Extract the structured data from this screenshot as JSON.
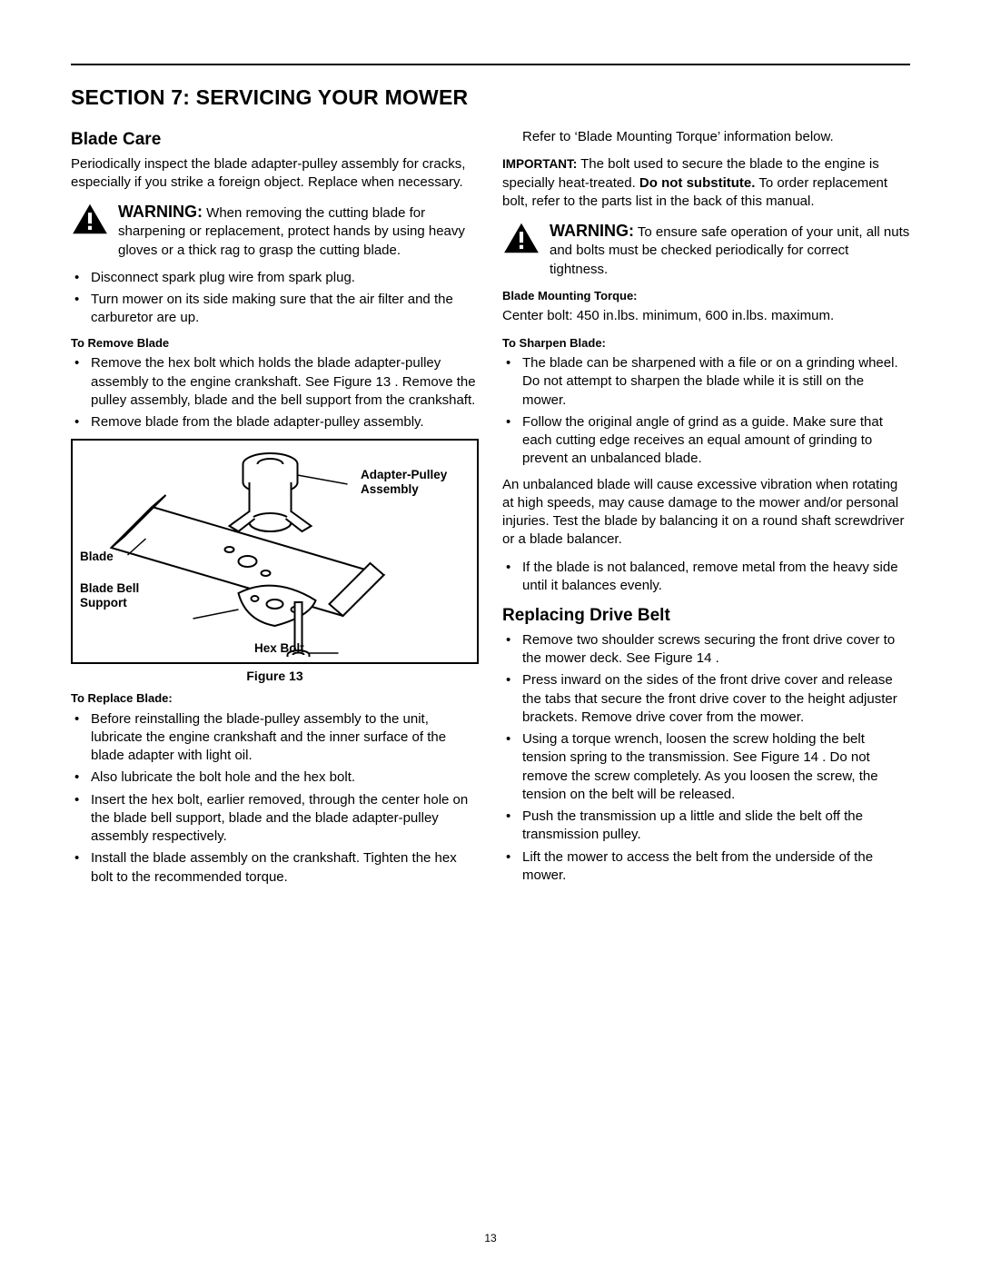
{
  "page_number": "13",
  "hr_color": "#000000",
  "section_title": "SECTION 7: SERVICING YOUR MOWER",
  "left": {
    "blade_care_h": "Blade Care",
    "blade_care_p": "Periodically inspect the blade adapter-pulley assembly for cracks, especially if you strike a foreign object. Replace when necessary.",
    "warn1_lead": "WARNING:",
    "warn1_body": " When removing the cutting blade for sharpening or replacement, protect hands by using heavy gloves or a thick rag to grasp the cutting blade.",
    "pre_remove_bullets": [
      "Disconnect spark plug wire from spark plug.",
      "Turn mower on its side making sure that the air filter and the carburetor are up."
    ],
    "to_remove_h": "To Remove Blade",
    "to_remove_bullets": [
      "Remove the hex bolt which holds the blade adapter-pulley assembly to the engine crankshaft. See Figure 13 . Remove the pulley assembly, blade and the bell support from the crankshaft.",
      "Remove blade from the blade adapter-pulley assembly."
    ],
    "figure": {
      "caption": "Figure 13",
      "labels": {
        "adapter": "Adapter-Pulley\nAssembly",
        "blade": "Blade",
        "bell": "Blade Bell\nSupport",
        "hex": "Hex Bolt"
      }
    },
    "to_replace_h": "To Replace Blade:",
    "to_replace_bullets": [
      "Before reinstalling the blade-pulley assembly to the unit, lubricate the engine crankshaft and the inner surface of the blade adapter with light oil.",
      "Also lubricate the bolt hole and the hex bolt.",
      "Insert the hex bolt, earlier removed, through the center hole on the blade bell support, blade and the blade adapter-pulley assembly respectively.",
      "Install the blade assembly on the crankshaft. Tighten the hex bolt to the recommended torque."
    ]
  },
  "right": {
    "intro_p": "Refer to ‘Blade Mounting Torque’ information below.",
    "important_lead": "IMPORTANT:",
    "important_body_a": " The bolt used to secure the blade to the engine is specially heat-treated. ",
    "important_bold": "Do not substitute.",
    "important_body_b": " To order replacement bolt, refer to the parts list in the back of this manual.",
    "warn2_lead": "WARNING:",
    "warn2_body": " To ensure safe operation of your unit, all nuts and bolts must be checked periodically for correct tightness.",
    "torque_h": "Blade Mounting Torque:",
    "torque_p": "Center bolt: 450 in.lbs. minimum, 600 in.lbs. maximum.",
    "sharpen_h": "To Sharpen Blade:",
    "sharpen_bullets_a": [
      "The blade can be sharpened with a file or on a grinding wheel. Do not attempt to sharpen the blade while it is still on the mower.",
      "Follow the original angle of grind as a guide. Make sure that each cutting edge receives an equal amount of grinding to prevent an unbalanced blade."
    ],
    "unbalanced_p": "An unbalanced blade will cause excessive vibration when rotating at high speeds, may cause damage to the mower and/or personal injuries. Test the blade by balancing it on a round shaft screwdriver or a blade balancer.",
    "sharpen_bullets_b": [
      "If the blade is not balanced, remove metal from the heavy side until it balances evenly."
    ],
    "belt_h": "Replacing Drive Belt",
    "belt_bullets": [
      "Remove two shoulder screws securing the front drive cover to the mower deck. See Figure 14 .",
      "Press inward on the sides of the front drive cover and release the tabs that secure the front drive cover to the height adjuster brackets. Remove drive cover from the mower.",
      "Using a torque wrench, loosen the screw holding the belt tension spring to the transmission. See Figure 14 . Do not remove the screw completely. As you loosen the screw, the tension on the belt will be released.",
      "Push the transmission up a little and slide the belt off the transmission pulley.",
      "Lift the mower to access the belt from the underside of the mower."
    ]
  },
  "warning_icon": {
    "fill": "#000000",
    "bang_fill": "#ffffff"
  }
}
